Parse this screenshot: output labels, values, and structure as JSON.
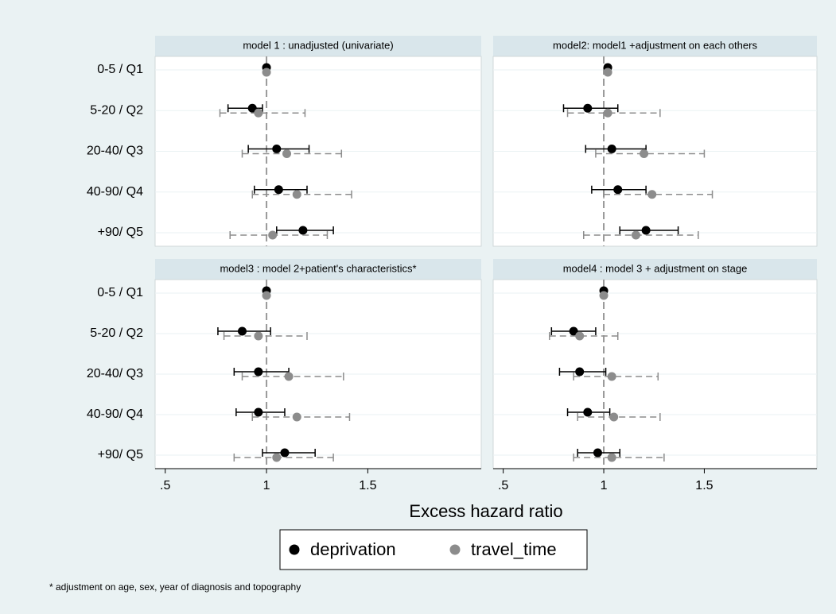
{
  "chart_data": [
    {
      "type": "forest",
      "title": "model 1 : unadjusted (univariate)",
      "categories": [
        "0-5 / Q1",
        "5-20 / Q2",
        "20-40/ Q3",
        "40-90/ Q4",
        "+90/ Q5"
      ],
      "xlim": [
        0.45,
        2.06
      ],
      "refline": 1,
      "series": [
        {
          "name": "deprivation",
          "color": "#000000",
          "values": [
            1,
            0.93,
            1.05,
            1.06,
            1.18
          ],
          "lower": [
            1,
            0.81,
            0.91,
            0.94,
            1.05
          ],
          "upper": [
            1,
            0.98,
            1.21,
            1.2,
            1.33
          ]
        },
        {
          "name": "travel_time",
          "color": "#8c8c8c",
          "values": [
            1,
            0.96,
            1.1,
            1.15,
            1.03
          ],
          "lower": [
            1,
            0.77,
            0.88,
            0.93,
            0.82
          ],
          "upper": [
            1,
            1.19,
            1.37,
            1.42,
            1.3
          ]
        }
      ]
    },
    {
      "type": "forest",
      "title": "model2: model1 +adjustment on each others",
      "categories": [
        "0-5 / Q1",
        "5-20 / Q2",
        "20-40/ Q3",
        "40-90/ Q4",
        "+90/ Q5"
      ],
      "xlim": [
        0.45,
        2.06
      ],
      "refline": 1,
      "series": [
        {
          "name": "deprivation",
          "color": "#000000",
          "values": [
            1.02,
            0.92,
            1.04,
            1.07,
            1.21
          ],
          "lower": [
            1.02,
            0.8,
            0.91,
            0.94,
            1.08
          ],
          "upper": [
            1.02,
            1.07,
            1.21,
            1.21,
            1.37
          ]
        },
        {
          "name": "travel_time",
          "color": "#8c8c8c",
          "values": [
            1.02,
            1.02,
            1.2,
            1.24,
            1.16
          ],
          "lower": [
            1.02,
            0.82,
            0.96,
            1.0,
            0.9
          ],
          "upper": [
            1.02,
            1.28,
            1.5,
            1.54,
            1.47
          ]
        }
      ]
    },
    {
      "type": "forest",
      "title": "model3 : model 2+patient's characteristics*",
      "categories": [
        "0-5 / Q1",
        "5-20 / Q2",
        "20-40/ Q3",
        "40-90/ Q4",
        "+90/ Q5"
      ],
      "xlim": [
        0.45,
        2.06
      ],
      "refline": 1,
      "xticks": [
        {
          "value": 0.5,
          "label": ".5"
        },
        1,
        {
          "value": 1.5,
          "label": "1.5"
        }
      ],
      "series": [
        {
          "name": "deprivation",
          "color": "#000000",
          "values": [
            1,
            0.88,
            0.96,
            0.96,
            1.09
          ],
          "lower": [
            1,
            0.76,
            0.84,
            0.85,
            0.98
          ],
          "upper": [
            1,
            1.02,
            1.11,
            1.09,
            1.24
          ]
        },
        {
          "name": "travel_time",
          "color": "#8c8c8c",
          "values": [
            1,
            0.96,
            1.11,
            1.15,
            1.05
          ],
          "lower": [
            1,
            0.79,
            0.88,
            0.93,
            0.84
          ],
          "upper": [
            1,
            1.2,
            1.38,
            1.41,
            1.33
          ]
        }
      ]
    },
    {
      "type": "forest",
      "title": "model4 : model 3 + adjustment on stage",
      "categories": [
        "0-5 / Q1",
        "5-20 / Q2",
        "20-40/ Q3",
        "40-90/ Q4",
        "+90/ Q5"
      ],
      "xlim": [
        0.45,
        2.06
      ],
      "refline": 1,
      "xticks": [
        {
          "value": 0.5,
          "label": ".5"
        },
        1,
        {
          "value": 1.5,
          "label": "1.5"
        }
      ],
      "series": [
        {
          "name": "deprivation",
          "color": "#000000",
          "values": [
            1,
            0.85,
            0.88,
            0.92,
            0.97
          ],
          "lower": [
            1,
            0.74,
            0.78,
            0.82,
            0.87
          ],
          "upper": [
            1,
            0.96,
            1.01,
            1.03,
            1.08
          ]
        },
        {
          "name": "travel_time",
          "color": "#8c8c8c",
          "values": [
            1,
            0.88,
            1.04,
            1.05,
            1.04
          ],
          "lower": [
            1,
            0.73,
            0.85,
            0.87,
            0.85
          ],
          "upper": [
            1,
            1.07,
            1.27,
            1.28,
            1.3
          ]
        }
      ]
    }
  ],
  "xlabel": "Excess hazard ratio",
  "note": "* adjustment on age, sex, year of diagnosis and topography"
}
